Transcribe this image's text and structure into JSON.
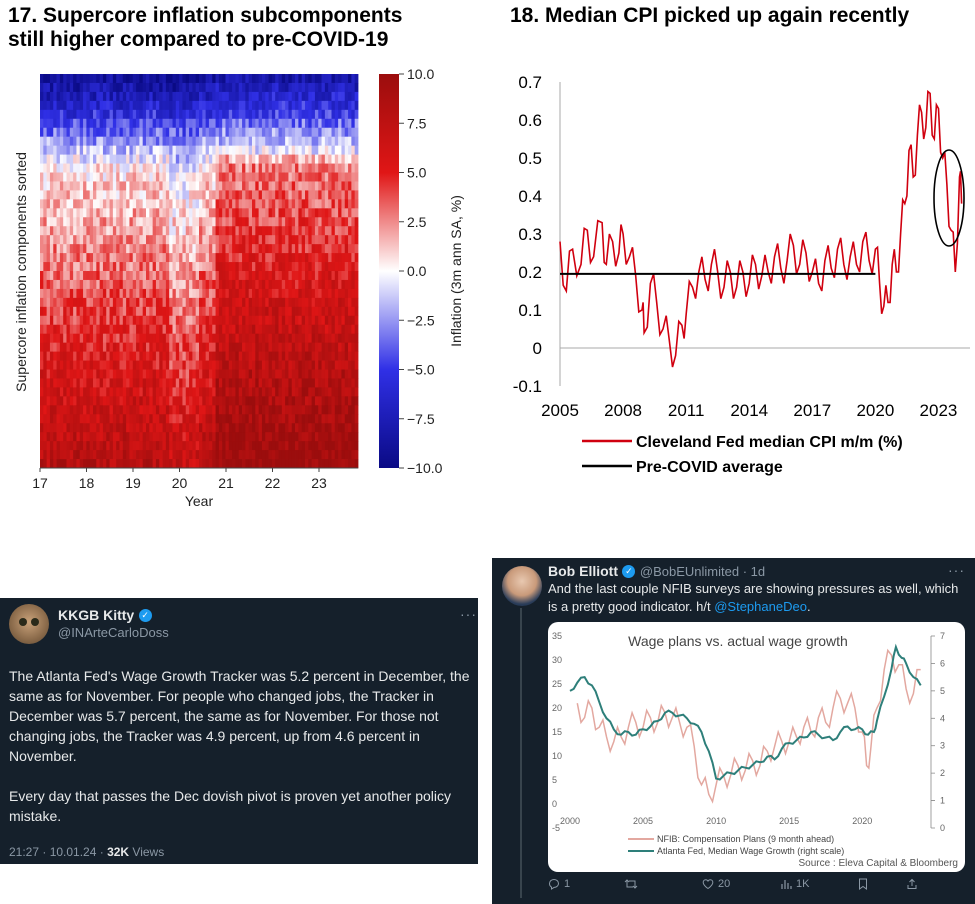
{
  "panel17": {
    "title_line1": "17. Supercore inflation subcomponents",
    "title_line2": "still higher compared to pre-COVID-19"
  },
  "panel18": {
    "title": "18. Median CPI picked up again recently"
  },
  "tweet_left": {
    "display_name": "KKGB Kitty",
    "handle": "@INArteCarloDoss",
    "more": "···",
    "paragraph1": "The Atlanta Fed's Wage Growth Tracker was 5.2 percent in December, the same as for November. For people who changed jobs, the Tracker in December was 5.7 percent, the same as for November. For those not changing jobs, the Tracker was 4.9 percent, up from 4.6 percent in November.",
    "paragraph2": "Every day that passes the Dec dovish pivot is proven yet another policy mistake.",
    "timestamp": "21:27 · 10.01.24 · ",
    "views_count": "32K",
    "views_label": " Views",
    "colors": {
      "background": "#15202b",
      "accent": "#1d9bf0"
    }
  },
  "tweet_right": {
    "display_name": "Bob Elliott",
    "handle": "@BobEUnlimited · 1d",
    "more": "···",
    "text_prefix": "And the last couple NFIB surveys are showing pressures as well, which is a pretty good indicator.  h/t ",
    "mention": "@StephaneDeo",
    "text_suffix": ".",
    "actions": [
      {
        "icon": "reply-icon",
        "count": "1"
      },
      {
        "icon": "retweet-icon",
        "count": ""
      },
      {
        "icon": "like-icon",
        "count": "20"
      },
      {
        "icon": "views-icon",
        "count": "1K"
      },
      {
        "icon": "bookmark-icon",
        "count": ""
      },
      {
        "icon": "share-icon",
        "count": ""
      }
    ],
    "colors": {
      "background": "#15202b",
      "accent": "#1d9bf0"
    }
  },
  "chart_data": [
    {
      "type": "heatmap",
      "title": "",
      "xlabel": "Year",
      "ylabel": "Supercore inflation components sorted",
      "x_ticks": [
        "17",
        "18",
        "19",
        "20",
        "21",
        "22",
        "23"
      ],
      "colorbar": {
        "label": "Inflation (3m ann SA, %)",
        "ticks": [
          "10.0",
          "7.5",
          "5.0",
          "2.5",
          "0.0",
          "−2.5",
          "−5.0",
          "−7.5",
          "−10.0"
        ],
        "range": [
          -10,
          10
        ],
        "colors": [
          "#0a0a85",
          "#ffffff",
          "#9b0d0d"
        ]
      },
      "sorted_component_levels_approx": {
        "rows_top_to_bottom": [
          "lowest",
          "low",
          "mid",
          "high",
          "highest"
        ],
        "typical_values": [
          -8,
          -2,
          1,
          4,
          7
        ]
      },
      "periods_with_higher_levels": [
        "21",
        "22",
        "23"
      ]
    },
    {
      "type": "line",
      "title": "",
      "xlabel": "",
      "ylabel": "",
      "x_ticks": [
        "2005",
        "2008",
        "2011",
        "2014",
        "2017",
        "2020",
        "2023"
      ],
      "y_ticks": [
        "0.7",
        "0.6",
        "0.5",
        "0.4",
        "0.3",
        "0.2",
        "0.1",
        "0",
        "-0.1"
      ],
      "xlim": [
        2005,
        2024.5
      ],
      "ylim": [
        -0.1,
        0.7
      ],
      "legend": [
        "Cleveland Fed median CPI m/m (%)",
        "Pre-COVID average"
      ],
      "series": [
        {
          "name": "Cleveland Fed median CPI m/m (%)",
          "color": "#d0000f",
          "points": [
            [
              2005.0,
              0.28
            ],
            [
              2005.3,
              0.15
            ],
            [
              2005.6,
              0.26
            ],
            [
              2006.0,
              0.22
            ],
            [
              2006.3,
              0.31
            ],
            [
              2006.6,
              0.24
            ],
            [
              2007.0,
              0.33
            ],
            [
              2007.2,
              0.22
            ],
            [
              2007.5,
              0.28
            ],
            [
              2007.8,
              0.25
            ],
            [
              2008.0,
              0.3
            ],
            [
              2008.3,
              0.24
            ],
            [
              2008.6,
              0.19
            ],
            [
              2008.9,
              0.1
            ],
            [
              2009.0,
              0.04
            ],
            [
              2009.3,
              0.17
            ],
            [
              2009.6,
              0.12
            ],
            [
              2009.9,
              0.05
            ],
            [
              2010.2,
              0.02
            ],
            [
              2010.5,
              -0.02
            ],
            [
              2010.8,
              0.06
            ],
            [
              2011.0,
              0.09
            ],
            [
              2011.3,
              0.16
            ],
            [
              2011.6,
              0.2
            ],
            [
              2011.9,
              0.18
            ],
            [
              2012.2,
              0.22
            ],
            [
              2012.5,
              0.2
            ],
            [
              2012.8,
              0.16
            ],
            [
              2013.1,
              0.2
            ],
            [
              2013.4,
              0.16
            ],
            [
              2013.7,
              0.2
            ],
            [
              2014.0,
              0.17
            ],
            [
              2014.3,
              0.22
            ],
            [
              2014.6,
              0.19
            ],
            [
              2014.9,
              0.2
            ],
            [
              2015.2,
              0.24
            ],
            [
              2015.5,
              0.21
            ],
            [
              2015.8,
              0.23
            ],
            [
              2016.1,
              0.27
            ],
            [
              2016.4,
              0.22
            ],
            [
              2016.7,
              0.25
            ],
            [
              2017.0,
              0.2
            ],
            [
              2017.3,
              0.17
            ],
            [
              2017.6,
              0.23
            ],
            [
              2017.9,
              0.21
            ],
            [
              2018.2,
              0.26
            ],
            [
              2018.5,
              0.22
            ],
            [
              2018.8,
              0.24
            ],
            [
              2019.1,
              0.22
            ],
            [
              2019.4,
              0.28
            ],
            [
              2019.7,
              0.23
            ],
            [
              2020.0,
              0.26
            ],
            [
              2020.2,
              0.17
            ],
            [
              2020.4,
              0.11
            ],
            [
              2020.6,
              0.12
            ],
            [
              2020.8,
              0.22
            ],
            [
              2021.0,
              0.2
            ],
            [
              2021.2,
              0.3
            ],
            [
              2021.4,
              0.38
            ],
            [
              2021.6,
              0.52
            ],
            [
              2021.8,
              0.45
            ],
            [
              2022.0,
              0.56
            ],
            [
              2022.2,
              0.62
            ],
            [
              2022.4,
              0.58
            ],
            [
              2022.6,
              0.67
            ],
            [
              2022.8,
              0.55
            ],
            [
              2023.0,
              0.63
            ],
            [
              2023.2,
              0.5
            ],
            [
              2023.4,
              0.43
            ],
            [
              2023.6,
              0.31
            ],
            [
              2023.8,
              0.2
            ],
            [
              2024.0,
              0.45
            ],
            [
              2024.1,
              0.38
            ]
          ]
        },
        {
          "name": "Pre-COVID average",
          "color": "#000000",
          "points": [
            [
              2005.0,
              0.195
            ],
            [
              2020.0,
              0.195
            ]
          ]
        }
      ],
      "annotations": [
        "ellipse around 2023-2024 values"
      ]
    },
    {
      "type": "line",
      "title": "Wage plans vs. actual wage growth",
      "xlabel": "",
      "ylabel": "",
      "x_ticks": [
        "2000",
        "2005",
        "2010",
        "2015",
        "2020"
      ],
      "left_y_ticks": [
        "35",
        "30",
        "25",
        "20",
        "15",
        "10",
        "5",
        "0",
        "-5"
      ],
      "right_y_ticks": [
        "7",
        "6",
        "5",
        "4",
        "3",
        "2",
        "1",
        "0"
      ],
      "ylim_left": [
        -5,
        35
      ],
      "ylim_right": [
        0,
        7
      ],
      "legend": [
        "NFIB: Compensation Plans (9 month ahead)",
        "Atlanta Fed, Median Wage Growth  (right scale)"
      ],
      "source": "Source : Eleva Capital & Bloomberg",
      "series": [
        {
          "name": "NFIB: Compensation Plans (9 month ahead)",
          "axis": "left",
          "color": "#e3a8a0",
          "points": [
            [
              2000.5,
              21
            ],
            [
              2001,
              18
            ],
            [
              2001.5,
              20
            ],
            [
              2002,
              16
            ],
            [
              2002.5,
              14
            ],
            [
              2003,
              13
            ],
            [
              2003.5,
              14
            ],
            [
              2004,
              16
            ],
            [
              2004.5,
              17
            ],
            [
              2005,
              16
            ],
            [
              2005.5,
              18
            ],
            [
              2006,
              17
            ],
            [
              2006.5,
              19
            ],
            [
              2007,
              18
            ],
            [
              2007.5,
              17
            ],
            [
              2008,
              16
            ],
            [
              2008.5,
              12
            ],
            [
              2009,
              4
            ],
            [
              2009.5,
              2
            ],
            [
              2010,
              4
            ],
            [
              2010.5,
              6
            ],
            [
              2011,
              6
            ],
            [
              2011.5,
              8
            ],
            [
              2012,
              7
            ],
            [
              2012.5,
              9
            ],
            [
              2013,
              8
            ],
            [
              2013.5,
              11
            ],
            [
              2014,
              12
            ],
            [
              2014.5,
              13
            ],
            [
              2015,
              13
            ],
            [
              2015.5,
              14
            ],
            [
              2016,
              16
            ],
            [
              2016.5,
              15
            ],
            [
              2017,
              18
            ],
            [
              2017.5,
              17
            ],
            [
              2018,
              20
            ],
            [
              2018.5,
              22
            ],
            [
              2019,
              21
            ],
            [
              2019.5,
              20
            ],
            [
              2020,
              15
            ],
            [
              2020.3,
              8
            ],
            [
              2020.6,
              12
            ],
            [
              2021,
              20
            ],
            [
              2021.5,
              28
            ],
            [
              2022,
              31
            ],
            [
              2022.5,
              29
            ],
            [
              2023,
              24
            ],
            [
              2023.5,
              23
            ],
            [
              2024,
              28
            ]
          ]
        },
        {
          "name": "Atlanta Fed, Median Wage Growth  (right scale)",
          "axis": "right",
          "color": "#2e7f7a",
          "points": [
            [
              2000,
              5.0
            ],
            [
              2000.5,
              5.3
            ],
            [
              2001,
              5.5
            ],
            [
              2001.5,
              5.2
            ],
            [
              2002,
              4.6
            ],
            [
              2002.5,
              4.0
            ],
            [
              2003,
              3.6
            ],
            [
              2003.5,
              3.4
            ],
            [
              2004,
              3.5
            ],
            [
              2004.5,
              3.4
            ],
            [
              2005,
              3.6
            ],
            [
              2005.5,
              3.7
            ],
            [
              2006,
              3.9
            ],
            [
              2006.5,
              4.2
            ],
            [
              2007,
              4.2
            ],
            [
              2007.5,
              4.1
            ],
            [
              2008,
              4.0
            ],
            [
              2008.5,
              3.8
            ],
            [
              2009,
              3.5
            ],
            [
              2009.5,
              2.8
            ],
            [
              2010,
              1.8
            ],
            [
              2010.5,
              1.9
            ],
            [
              2011,
              2.0
            ],
            [
              2011.5,
              2.1
            ],
            [
              2012,
              2.2
            ],
            [
              2012.5,
              2.3
            ],
            [
              2013,
              2.4
            ],
            [
              2013.5,
              2.6
            ],
            [
              2014,
              2.5
            ],
            [
              2014.5,
              2.9
            ],
            [
              2015,
              3.1
            ],
            [
              2015.5,
              3.2
            ],
            [
              2016,
              3.3
            ],
            [
              2016.5,
              3.5
            ],
            [
              2017,
              3.4
            ],
            [
              2017.5,
              3.3
            ],
            [
              2018,
              3.2
            ],
            [
              2018.5,
              3.5
            ],
            [
              2019,
              3.7
            ],
            [
              2019.5,
              3.6
            ],
            [
              2020,
              3.6
            ],
            [
              2020.4,
              3.4
            ],
            [
              2020.8,
              3.5
            ],
            [
              2021,
              3.9
            ],
            [
              2021.5,
              4.8
            ],
            [
              2022,
              5.8
            ],
            [
              2022.3,
              6.6
            ],
            [
              2022.7,
              6.2
            ],
            [
              2023,
              6.0
            ],
            [
              2023.5,
              5.5
            ],
            [
              2024,
              5.2
            ]
          ]
        }
      ]
    }
  ]
}
